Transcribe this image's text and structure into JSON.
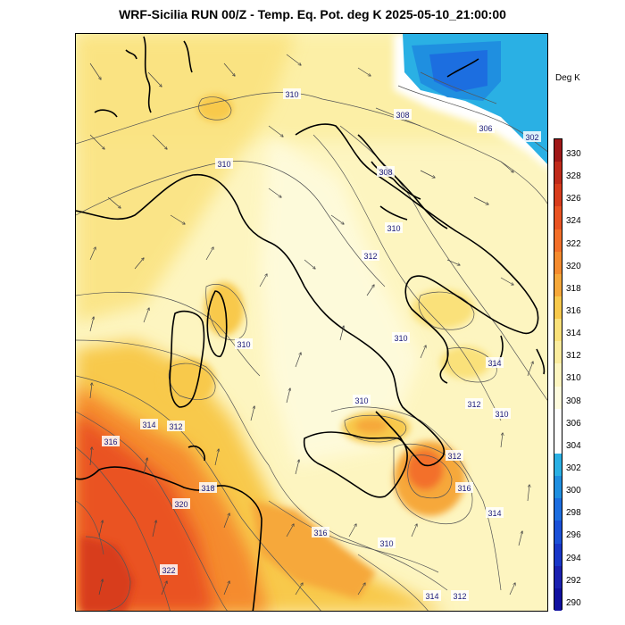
{
  "title": "WRF-Sicilia RUN 00/Z - Temp. Eq. Pot. deg K 2025-05-10_21:00:00",
  "units": "Deg K",
  "colorbar": {
    "labels": [
      "330",
      "328",
      "326",
      "324",
      "322",
      "320",
      "318",
      "316",
      "314",
      "312",
      "310",
      "308",
      "306",
      "304",
      "302",
      "300",
      "298",
      "296",
      "294",
      "292",
      "290"
    ],
    "colors": [
      "#a01818",
      "#c02a1a",
      "#d83c1c",
      "#ea5322",
      "#f36f29",
      "#f58b2e",
      "#f6a83a",
      "#f8c94c",
      "#fae17a",
      "#fbec9e",
      "#fdf5c0",
      "#fefbdd",
      "#ffffff",
      "#ffffff",
      "#2ab0e4",
      "#1f8fe0",
      "#1c6ee0",
      "#1a50d8",
      "#1836c8",
      "#1a20b0",
      "#1010a0"
    ]
  },
  "contour_labels": [
    {
      "text": "310",
      "pos": [
        326,
        105
      ]
    },
    {
      "text": "310",
      "pos": [
        250,
        183
      ]
    },
    {
      "text": "308",
      "pos": [
        450,
        128
      ]
    },
    {
      "text": "306",
      "pos": [
        543,
        143
      ]
    },
    {
      "text": "302",
      "pos": [
        595,
        153
      ]
    },
    {
      "text": "308",
      "pos": [
        431,
        192
      ]
    },
    {
      "text": "310",
      "pos": [
        440,
        255
      ]
    },
    {
      "text": "312",
      "pos": [
        414,
        286
      ]
    },
    {
      "text": "310",
      "pos": [
        272,
        385
      ]
    },
    {
      "text": "310",
      "pos": [
        448,
        378
      ]
    },
    {
      "text": "314",
      "pos": [
        553,
        406
      ]
    },
    {
      "text": "310",
      "pos": [
        404,
        448
      ]
    },
    {
      "text": "312",
      "pos": [
        530,
        452
      ]
    },
    {
      "text": "310",
      "pos": [
        561,
        463
      ]
    },
    {
      "text": "314",
      "pos": [
        166,
        475
      ]
    },
    {
      "text": "312",
      "pos": [
        196,
        477
      ]
    },
    {
      "text": "316",
      "pos": [
        123,
        494
      ]
    },
    {
      "text": "312",
      "pos": [
        508,
        510
      ]
    },
    {
      "text": "316",
      "pos": [
        519,
        546
      ]
    },
    {
      "text": "318",
      "pos": [
        232,
        546
      ]
    },
    {
      "text": "320",
      "pos": [
        202,
        564
      ]
    },
    {
      "text": "314",
      "pos": [
        553,
        574
      ]
    },
    {
      "text": "316",
      "pos": [
        358,
        596
      ]
    },
    {
      "text": "310",
      "pos": [
        432,
        608
      ]
    },
    {
      "text": "322",
      "pos": [
        188,
        638
      ]
    },
    {
      "text": "314",
      "pos": [
        483,
        667
      ]
    },
    {
      "text": "312",
      "pos": [
        514,
        667
      ]
    }
  ]
}
